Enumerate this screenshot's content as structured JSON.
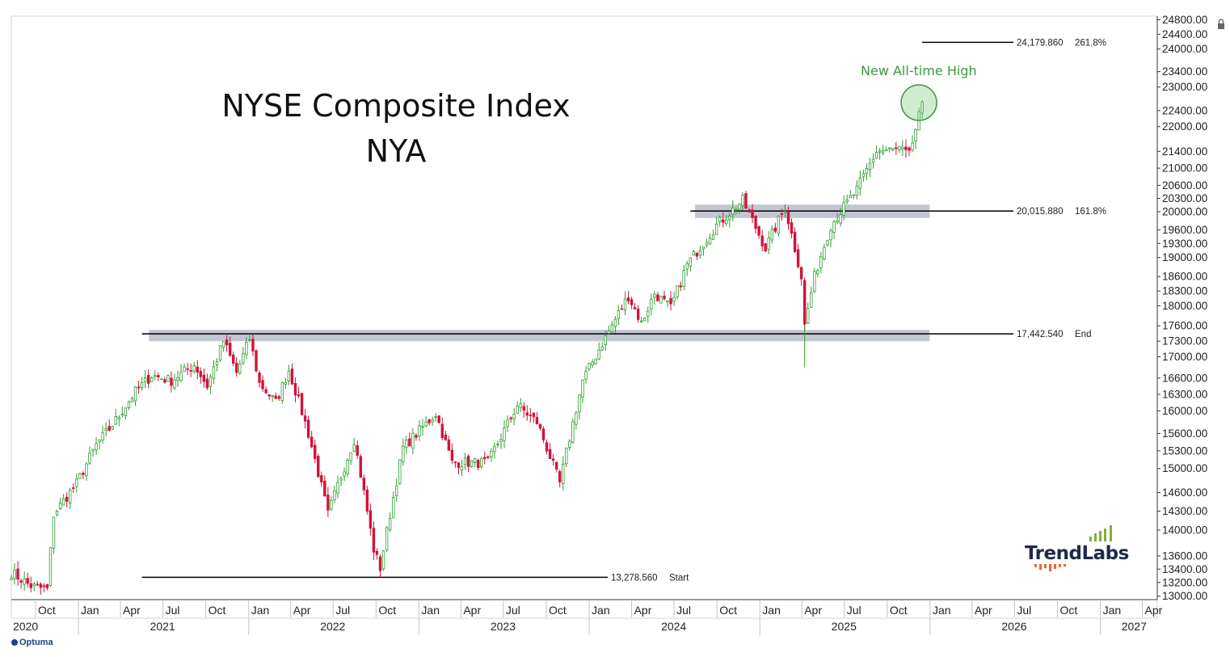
{
  "chart_data": {
    "type": "candlestick",
    "title": "NYSE Composite Index",
    "subtitle": "NYA",
    "annotation": "New All-time High",
    "brand": "TrendLabs",
    "footer_brand": "Optuma",
    "colors": {
      "up": "#2f9e2f",
      "down": "#d3123a",
      "band": "#b7bcc8",
      "highlight": "#3a9a3a",
      "axis": "#333333"
    },
    "y_axis": {
      "side": "right",
      "log_scale": true,
      "range": [
        12950,
        24900
      ],
      "ticks": [
        "24800.00",
        "24400.00",
        "24000.00",
        "23400.00",
        "23000.00",
        "22400.00",
        "22000.00",
        "21400.00",
        "21000.00",
        "20600.00",
        "20300.00",
        "20000.00",
        "19600.00",
        "19300.00",
        "19000.00",
        "18600.00",
        "18300.00",
        "18000.00",
        "17600.00",
        "17300.00",
        "17000.00",
        "16600.00",
        "16300.00",
        "16000.00",
        "15600.00",
        "15300.00",
        "15000.00",
        "14600.00",
        "14300.00",
        "14000.00",
        "13600.00",
        "13400.00",
        "13200.00",
        "13000.00"
      ]
    },
    "x_axis": {
      "range": [
        "2020-08-10",
        "2027-05-03"
      ],
      "months": [
        {
          "label": "Oct",
          "date": "2020-10-01"
        },
        {
          "label": "Jan",
          "date": "2021-01-01"
        },
        {
          "label": "Apr",
          "date": "2021-04-01"
        },
        {
          "label": "Jul",
          "date": "2021-07-01"
        },
        {
          "label": "Oct",
          "date": "2021-10-01"
        },
        {
          "label": "Jan",
          "date": "2022-01-01"
        },
        {
          "label": "Apr",
          "date": "2022-04-01"
        },
        {
          "label": "Jul",
          "date": "2022-07-01"
        },
        {
          "label": "Oct",
          "date": "2022-10-01"
        },
        {
          "label": "Jan",
          "date": "2023-01-01"
        },
        {
          "label": "Apr",
          "date": "2023-04-01"
        },
        {
          "label": "Jul",
          "date": "2023-07-01"
        },
        {
          "label": "Oct",
          "date": "2023-10-01"
        },
        {
          "label": "Jan",
          "date": "2024-01-01"
        },
        {
          "label": "Apr",
          "date": "2024-04-01"
        },
        {
          "label": "Jul",
          "date": "2024-07-01"
        },
        {
          "label": "Oct",
          "date": "2024-10-01"
        },
        {
          "label": "Jan",
          "date": "2025-01-01"
        },
        {
          "label": "Apr",
          "date": "2025-04-01"
        },
        {
          "label": "Jul",
          "date": "2025-07-01"
        },
        {
          "label": "Oct",
          "date": "2025-10-01"
        },
        {
          "label": "Jan",
          "date": "2026-01-01"
        },
        {
          "label": "Apr",
          "date": "2026-04-01"
        },
        {
          "label": "Jul",
          "date": "2026-07-01"
        },
        {
          "label": "Oct",
          "date": "2026-10-01"
        },
        {
          "label": "Jan",
          "date": "2027-01-01"
        },
        {
          "label": "Apr",
          "date": "2027-04-01"
        }
      ],
      "years": [
        {
          "label": "2020",
          "date": "2020-09-01"
        },
        {
          "label": "2021",
          "date": "2021-07-01"
        },
        {
          "label": "2022",
          "date": "2022-07-01"
        },
        {
          "label": "2023",
          "date": "2023-07-01"
        },
        {
          "label": "2024",
          "date": "2024-07-01"
        },
        {
          "label": "2025",
          "date": "2025-07-01"
        },
        {
          "label": "2026",
          "date": "2026-07-01"
        },
        {
          "label": "2027",
          "date": "2027-03-15"
        }
      ]
    },
    "levels": [
      {
        "value": 24179.86,
        "label": "24,179.860",
        "pct": "261.8%",
        "from": "2025-12-15"
      },
      {
        "value": 20015.88,
        "label": "20,015.880",
        "pct": "161.8%",
        "from": "2024-08-05"
      },
      {
        "value": 17442.54,
        "label": "17,442.540",
        "pct": "End",
        "from": "2021-05-17"
      },
      {
        "value": 13278.56,
        "label": "13,278.560",
        "pct": "Start",
        "from": "2021-05-17"
      }
    ],
    "bands": [
      {
        "low": 17300,
        "high": 17520,
        "from": "2021-06-01",
        "to": "2025-12-31"
      },
      {
        "low": 19860,
        "high": 20160,
        "from": "2024-08-15",
        "to": "2025-12-31"
      }
    ],
    "highlight": {
      "date": "2025-12-08",
      "value": 22600
    },
    "anchors": [
      [
        "2020-08-10",
        13350
      ],
      [
        "2020-09-21",
        13150
      ],
      [
        "2020-10-26",
        13100
      ],
      [
        "2020-11-09",
        14250
      ],
      [
        "2020-12-28",
        14750
      ],
      [
        "2021-02-08",
        15400
      ],
      [
        "2021-03-15",
        15750
      ],
      [
        "2021-05-03",
        16350
      ],
      [
        "2021-06-07",
        16650
      ],
      [
        "2021-07-19",
        16550
      ],
      [
        "2021-09-06",
        16850
      ],
      [
        "2021-10-04",
        16450
      ],
      [
        "2021-11-08",
        17300
      ],
      [
        "2021-12-06",
        16700
      ],
      [
        "2022-01-03",
        17350
      ],
      [
        "2022-01-24",
        16500
      ],
      [
        "2022-02-28",
        16150
      ],
      [
        "2022-03-28",
        16750
      ],
      [
        "2022-05-09",
        15600
      ],
      [
        "2022-06-20",
        14250
      ],
      [
        "2022-08-15",
        15500
      ],
      [
        "2022-09-26",
        13700
      ],
      [
        "2022-10-10",
        13420
      ],
      [
        "2022-11-28",
        15350
      ],
      [
        "2023-02-06",
        15950
      ],
      [
        "2023-03-13",
        15100
      ],
      [
        "2023-05-29",
        15100
      ],
      [
        "2023-07-31",
        16100
      ],
      [
        "2023-09-11",
        15800
      ],
      [
        "2023-10-30",
        14750
      ],
      [
        "2023-12-18",
        16550
      ],
      [
        "2024-03-25",
        18200
      ],
      [
        "2024-04-22",
        17650
      ],
      [
        "2024-05-20",
        18250
      ],
      [
        "2024-06-24",
        17950
      ],
      [
        "2024-07-29",
        18850
      ],
      [
        "2024-09-30",
        19700
      ],
      [
        "2024-11-25",
        20250
      ],
      [
        "2025-01-13",
        19200
      ],
      [
        "2025-02-24",
        20100
      ],
      [
        "2025-03-31",
        18600
      ],
      [
        "2025-04-07",
        17600
      ],
      [
        "2025-04-28",
        18600
      ],
      [
        "2025-06-02",
        19700
      ],
      [
        "2025-07-28",
        20500
      ],
      [
        "2025-09-08",
        21400
      ],
      [
        "2025-10-27",
        21450
      ],
      [
        "2025-11-17",
        21300
      ],
      [
        "2025-12-08",
        22250
      ],
      [
        "2025-12-15",
        22450
      ]
    ]
  }
}
